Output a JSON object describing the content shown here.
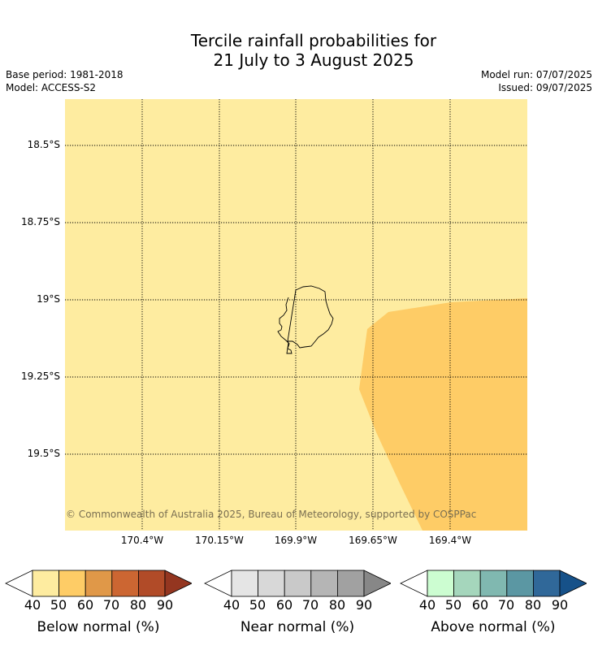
{
  "title_line1": "Tercile rainfall probabilities for",
  "title_line2": "21 July to 3 August 2025",
  "base_period": "Base period: 1981-2018",
  "model": "Model: ACCESS-S2",
  "model_run": "Model run: 07/07/2025",
  "issued": "Issued: 09/07/2025",
  "copyright": "© Commonwealth of Australia 2025, Bureau of Meteorology, supported by COSPPac",
  "latitude_labels": [
    "18.5°S",
    "18.75°S",
    "19°S",
    "19.25°S",
    "19.5°S"
  ],
  "longitude_labels": [
    "170.4°W",
    "170.15°W",
    "169.9°W",
    "169.65°W",
    "169.4°W"
  ],
  "map_colors": {
    "background": "#feeca0",
    "below_normal_50_60": "#fecc66",
    "coastline": "#000000",
    "grid": "#000000"
  },
  "legends": [
    {
      "title": "Below normal (%)",
      "ticks": [
        "40",
        "50",
        "60",
        "70",
        "80",
        "90"
      ],
      "colors": [
        "#ffffff",
        "#feeca0",
        "#fecc66",
        "#e09848",
        "#cc6632",
        "#b14b28",
        "#943620"
      ]
    },
    {
      "title": "Near normal (%)",
      "ticks": [
        "40",
        "50",
        "60",
        "70",
        "80",
        "90"
      ],
      "colors": [
        "#ffffff",
        "#e5e5e5",
        "#d8d8d8",
        "#c9c9c9",
        "#b5b5b5",
        "#a1a1a1",
        "#878787"
      ]
    },
    {
      "title": "Above normal (%)",
      "ticks": [
        "40",
        "50",
        "60",
        "70",
        "80",
        "90"
      ],
      "colors": [
        "#ffffff",
        "#ccfdd1",
        "#a5d6bc",
        "#80b8b0",
        "#5b97a3",
        "#306899",
        "#165189"
      ]
    }
  ]
}
